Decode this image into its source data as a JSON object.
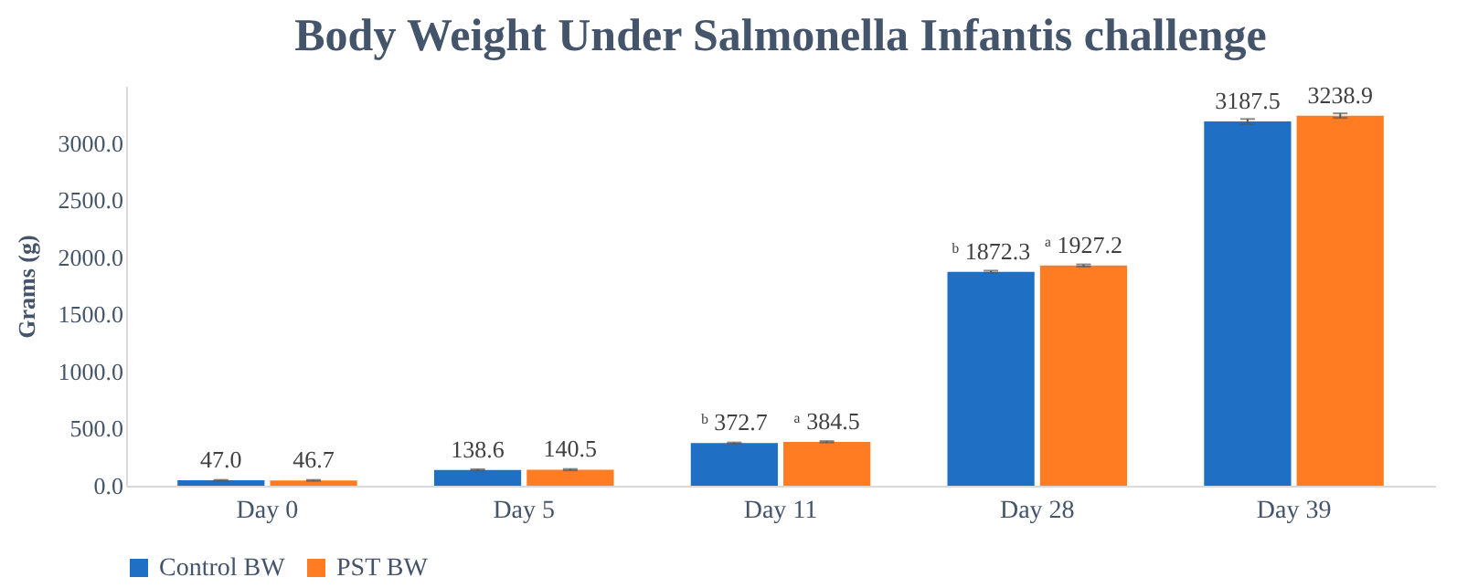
{
  "chart_data": {
    "type": "bar",
    "title": "Body Weight Under Salmonella Infantis challenge",
    "ylabel": "Grams (g)",
    "categories": [
      "Day 0",
      "Day 5",
      "Day 11",
      "Day 28",
      "Day 39"
    ],
    "series": [
      {
        "name": "Control BW",
        "color": "#1f6fc5",
        "values": [
          47.0,
          138.6,
          372.7,
          1872.3,
          3187.5
        ],
        "errors": [
          4,
          6,
          6,
          10,
          22
        ],
        "value_labels": [
          "47.0",
          "138.6",
          "ᵇ 372.7",
          "ᵇ 1872.3",
          "3187.5"
        ]
      },
      {
        "name": "PST BW",
        "color": "#ff7c22",
        "values": [
          46.7,
          140.5,
          384.5,
          1927.2,
          3238.9
        ],
        "errors": [
          4,
          6,
          6,
          10,
          20
        ],
        "value_labels": [
          "46.7",
          "140.5",
          "ᵃ 384.5",
          "ᵃ 1927.2",
          "3238.9"
        ]
      }
    ],
    "ylim": [
      0,
      3500
    ],
    "yticks": [
      {
        "value": 0,
        "label": "0.0"
      },
      {
        "value": 500,
        "label": "500.0"
      },
      {
        "value": 1000,
        "label": "1000.0"
      },
      {
        "value": 1500,
        "label": "1500.0"
      },
      {
        "value": 2000,
        "label": "2000.0"
      },
      {
        "value": 2500,
        "label": "2500.0"
      },
      {
        "value": 3000,
        "label": "3000.0"
      }
    ],
    "grid": false,
    "legend": "bottom"
  }
}
